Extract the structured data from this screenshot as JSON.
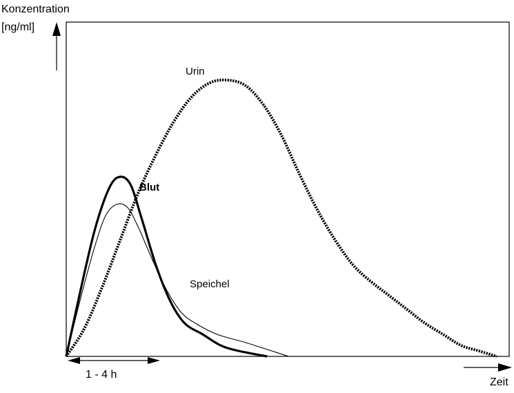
{
  "chart_data": {
    "type": "line",
    "title": "",
    "ylabel_line1": "Konzentration",
    "ylabel_line2": "[ng/ml]",
    "xlabel": "Zeit",
    "grid": false,
    "series": [
      {
        "name": "Urin",
        "style": "dotted-heavy",
        "color": "#000000",
        "points": [
          [
            0,
            0
          ],
          [
            5,
            10
          ],
          [
            10,
            25
          ],
          [
            15,
            42
          ],
          [
            20,
            59
          ],
          [
            25,
            73
          ],
          [
            30,
            85
          ],
          [
            35,
            94
          ],
          [
            40,
            99
          ],
          [
            45,
            100
          ],
          [
            50,
            98
          ],
          [
            55,
            91
          ],
          [
            60,
            80
          ],
          [
            65,
            66
          ],
          [
            70,
            53
          ],
          [
            75,
            42
          ],
          [
            80,
            33
          ],
          [
            85,
            27
          ],
          [
            90,
            22
          ],
          [
            95,
            17
          ],
          [
            100,
            12
          ],
          [
            105,
            8
          ],
          [
            110,
            4
          ],
          [
            115,
            2
          ],
          [
            120,
            0
          ]
        ]
      },
      {
        "name": "Blut",
        "style": "solid-thick",
        "color": "#000000",
        "points": [
          [
            0,
            0
          ],
          [
            4,
            24
          ],
          [
            8,
            46
          ],
          [
            12,
            61
          ],
          [
            15,
            65
          ],
          [
            18,
            62
          ],
          [
            21,
            50
          ],
          [
            25,
            33
          ],
          [
            29,
            20
          ],
          [
            33,
            12
          ],
          [
            38,
            8
          ],
          [
            43,
            4
          ],
          [
            48,
            2
          ],
          [
            56,
            0
          ]
        ]
      },
      {
        "name": "Speichel",
        "style": "solid-thin",
        "color": "#000000",
        "points": [
          [
            0,
            0
          ],
          [
            4,
            21
          ],
          [
            8,
            40
          ],
          [
            11,
            51
          ],
          [
            14,
            55
          ],
          [
            17,
            54
          ],
          [
            20,
            47
          ],
          [
            24,
            35
          ],
          [
            28,
            24
          ],
          [
            32,
            16
          ],
          [
            36,
            12
          ],
          [
            42,
            8
          ],
          [
            50,
            5
          ],
          [
            62,
            0
          ]
        ]
      }
    ],
    "annotations": [
      {
        "text": "1 - 4 h",
        "type": "double-arrow"
      }
    ]
  }
}
